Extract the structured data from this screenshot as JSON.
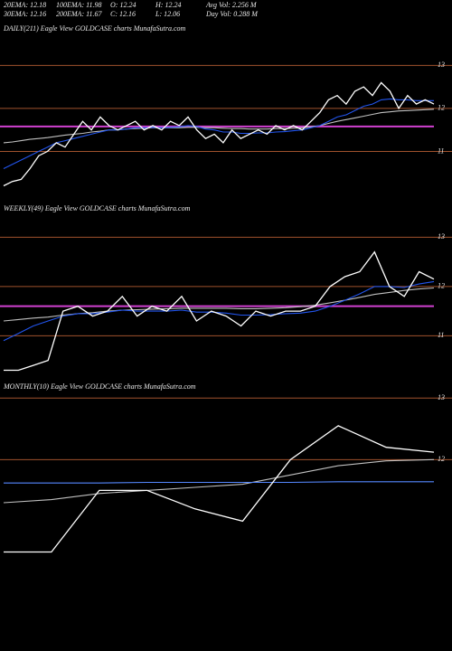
{
  "header": {
    "rows": [
      [
        "20EMA: 12.18",
        "100EMA: 11.98",
        "O: 12.24",
        "H: 12.24",
        "Avg Vol: 2.256  M"
      ],
      [
        "30EMA: 12.16",
        "200EMA: 11.67",
        "C: 12.16",
        "L: 12.06",
        "Day Vol: 0.288  M"
      ]
    ]
  },
  "chart_data": [
    {
      "type": "line",
      "title": "DAILY(211) Eagle  View  GOLDCASE charts MunafaSutra.com",
      "ylim": [
        10,
        13.68
      ],
      "yticks": [
        11,
        12,
        13
      ],
      "grid": true,
      "grid_color": "#a0522d",
      "ref_line": 11.58,
      "ref_color": "#d040d0",
      "series": [
        {
          "color": "#c0c0c0",
          "values": [
            11.2,
            11.22,
            11.25,
            11.28,
            11.3,
            11.32,
            11.35,
            11.38,
            11.4,
            11.42,
            11.45,
            11.47,
            11.5,
            11.5,
            11.52,
            11.53,
            11.54,
            11.55,
            11.55,
            11.55,
            11.55,
            11.56,
            11.56,
            11.55,
            11.55,
            11.54,
            11.53,
            11.53,
            11.52,
            11.52,
            11.52,
            11.53,
            11.53,
            11.54,
            11.55,
            11.57,
            11.6,
            11.65,
            11.7,
            11.74,
            11.78,
            11.82,
            11.86,
            11.9,
            11.92,
            11.94,
            11.95,
            11.96,
            11.97,
            11.98
          ]
        },
        {
          "color": "#2255ee",
          "values": [
            10.6,
            10.7,
            10.8,
            10.9,
            11.0,
            11.1,
            11.2,
            11.25,
            11.3,
            11.35,
            11.4,
            11.45,
            11.5,
            11.5,
            11.52,
            11.55,
            11.55,
            11.56,
            11.55,
            11.56,
            11.57,
            11.6,
            11.58,
            11.52,
            11.5,
            11.45,
            11.45,
            11.42,
            11.42,
            11.43,
            11.43,
            11.45,
            11.46,
            11.48,
            11.5,
            11.55,
            11.6,
            11.7,
            11.8,
            11.85,
            11.95,
            12.05,
            12.1,
            12.2,
            12.22,
            12.2,
            12.2,
            12.18,
            12.18,
            12.18
          ]
        },
        {
          "color": "#ffffff",
          "values": [
            10.2,
            10.3,
            10.35,
            10.6,
            10.9,
            11.0,
            11.2,
            11.1,
            11.4,
            11.7,
            11.5,
            11.8,
            11.6,
            11.5,
            11.6,
            11.7,
            11.5,
            11.6,
            11.5,
            11.7,
            11.6,
            11.8,
            11.5,
            11.3,
            11.4,
            11.2,
            11.5,
            11.3,
            11.4,
            11.5,
            11.4,
            11.6,
            11.5,
            11.6,
            11.5,
            11.7,
            11.9,
            12.2,
            12.3,
            12.1,
            12.4,
            12.5,
            12.3,
            12.6,
            12.4,
            12.0,
            12.3,
            12.1,
            12.2,
            12.1
          ]
        }
      ]
    },
    {
      "type": "line",
      "title": "WEEKLY(49) Eagle  View  GOLDCASE charts MunafaSutra.com",
      "ylim": [
        10.2,
        13.41
      ],
      "yticks": [
        11,
        12,
        13
      ],
      "grid": true,
      "grid_color": "#a0522d",
      "ref_line": 11.6,
      "ref_color": "#d040d0",
      "series": [
        {
          "color": "#c0c0c0",
          "values": [
            11.3,
            11.33,
            11.36,
            11.38,
            11.42,
            11.45,
            11.47,
            11.5,
            11.52,
            11.53,
            11.54,
            11.55,
            11.56,
            11.56,
            11.56,
            11.56,
            11.55,
            11.55,
            11.56,
            11.57,
            11.59,
            11.62,
            11.67,
            11.72,
            11.78,
            11.84,
            11.88,
            11.92,
            11.95,
            11.97
          ]
        },
        {
          "color": "#2255ee",
          "values": [
            10.9,
            11.05,
            11.2,
            11.3,
            11.4,
            11.45,
            11.45,
            11.48,
            11.52,
            11.5,
            11.5,
            11.5,
            11.52,
            11.48,
            11.48,
            11.46,
            11.42,
            11.42,
            11.43,
            11.45,
            11.46,
            11.5,
            11.6,
            11.72,
            11.85,
            12.0,
            12.0,
            11.98,
            12.05,
            12.1
          ]
        },
        {
          "color": "#ffffff",
          "values": [
            10.3,
            10.3,
            10.4,
            10.5,
            11.5,
            11.6,
            11.4,
            11.5,
            11.8,
            11.4,
            11.6,
            11.5,
            11.8,
            11.3,
            11.5,
            11.4,
            11.2,
            11.5,
            11.4,
            11.5,
            11.5,
            11.6,
            12.0,
            12.2,
            12.3,
            12.7,
            12.0,
            11.8,
            12.3,
            12.15
          ]
        }
      ]
    },
    {
      "type": "line",
      "title": "MONTHLY(10) Eagle  View  GOLDCASE charts MunafaSutra.com",
      "ylim": [
        10.36,
        13.15
      ],
      "yticks": [
        12,
        13
      ],
      "grid": true,
      "grid_color": "#a0522d",
      "series": [
        {
          "color": "#c0c0c0",
          "values": [
            11.3,
            11.35,
            11.45,
            11.5,
            11.55,
            11.6,
            11.75,
            11.9,
            11.98,
            12.0
          ]
        },
        {
          "color": "#5588ff",
          "values": [
            11.62,
            11.62,
            11.62,
            11.63,
            11.63,
            11.63,
            11.63,
            11.64,
            11.64,
            11.64
          ]
        },
        {
          "color": "#ffffff",
          "values": [
            10.5,
            10.5,
            11.5,
            11.5,
            11.2,
            11.0,
            12.0,
            12.55,
            12.2,
            12.12
          ]
        }
      ]
    }
  ]
}
